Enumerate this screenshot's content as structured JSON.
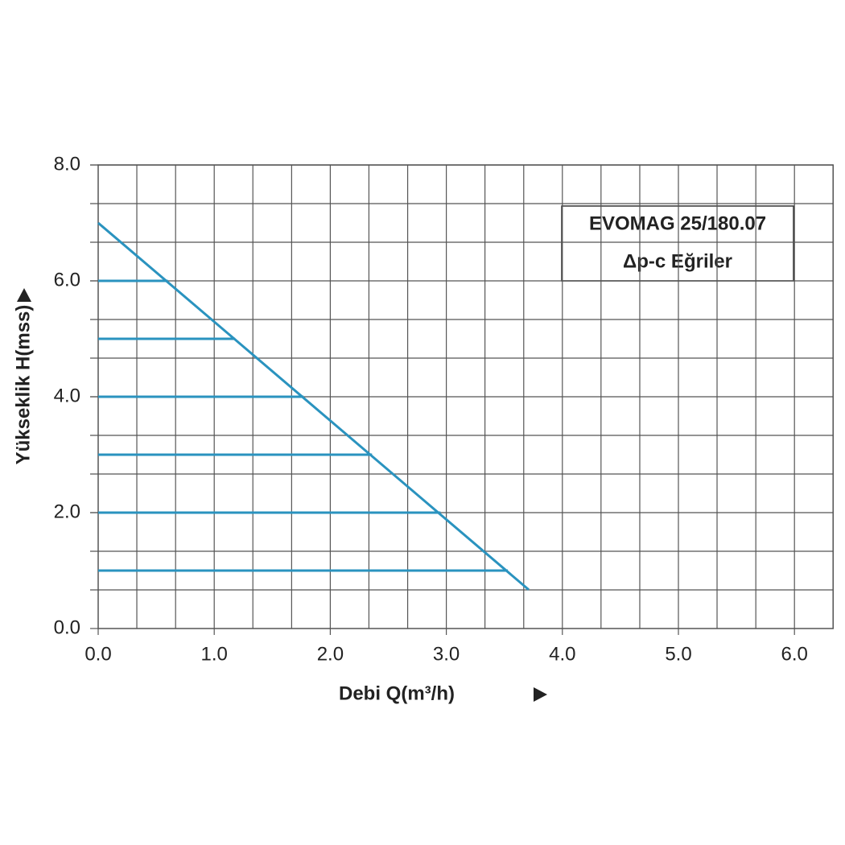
{
  "chart_data": {
    "type": "line",
    "title": "EVOMAG 25/180.07",
    "subtitle": "Δp-c Eğriler",
    "xlabel": "Debi Q(m³/h)",
    "ylabel": "Yükseklik H(mss)",
    "color": "#2a93bf",
    "xlim": [
      0,
      6.333
    ],
    "ylim": [
      0,
      8
    ],
    "xticks": [
      {
        "value": 0,
        "label": "0.0"
      },
      {
        "value": 1,
        "label": "1.0"
      },
      {
        "value": 2,
        "label": "2.0"
      },
      {
        "value": 3,
        "label": "3.0"
      },
      {
        "value": 4,
        "label": "4.0"
      },
      {
        "value": 5,
        "label": "5.0"
      },
      {
        "value": 6,
        "label": "6.0"
      }
    ],
    "yticks": [
      {
        "value": 0,
        "label": "0.0"
      },
      {
        "value": 2,
        "label": "2.0"
      },
      {
        "value": 4,
        "label": "4.0"
      },
      {
        "value": 6,
        "label": "6.0"
      },
      {
        "value": 8,
        "label": "8.0"
      }
    ],
    "x_gridlines": [
      0.333,
      0.667,
      1,
      1.333,
      1.667,
      2,
      2.333,
      2.667,
      3,
      3.333,
      3.667,
      4,
      4.333,
      4.667,
      5,
      5.333,
      5.667,
      6,
      6.333
    ],
    "y_gridlines": [
      0.667,
      1.333,
      2,
      2.667,
      3.333,
      4,
      4.667,
      5.333,
      6,
      6.667,
      7.333,
      8
    ],
    "lines": [
      {
        "x": [
          0,
          3.71
        ],
        "y": [
          7.0,
          0.67
        ]
      },
      {
        "x": [
          0,
          0.6
        ],
        "y": [
          6,
          6
        ]
      },
      {
        "x": [
          0,
          1.18
        ],
        "y": [
          5,
          5
        ]
      },
      {
        "x": [
          0,
          1.77
        ],
        "y": [
          4,
          4
        ]
      },
      {
        "x": [
          0,
          2.36
        ],
        "y": [
          3,
          3
        ]
      },
      {
        "x": [
          0,
          2.95
        ],
        "y": [
          2,
          2
        ]
      },
      {
        "x": [
          0,
          3.53
        ],
        "y": [
          1,
          1
        ]
      }
    ]
  }
}
